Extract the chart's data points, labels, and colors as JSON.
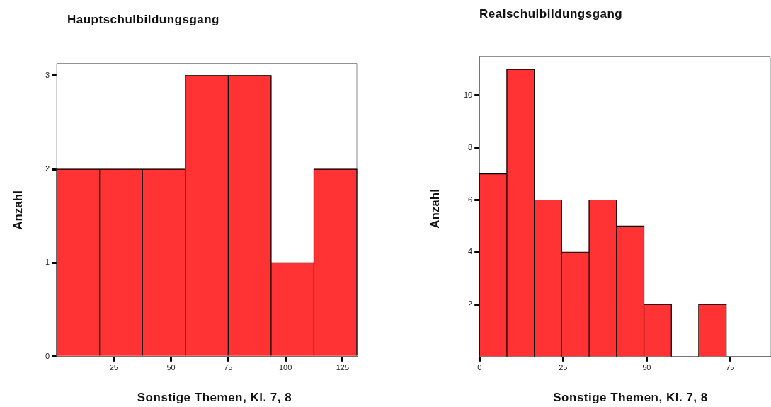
{
  "chart_data": [
    {
      "type": "histogram",
      "title": "Hauptschulbildungsgang",
      "xlabel": "Sonstige Themen, Kl. 7, 8",
      "ylabel": "Anzahl",
      "bins": [
        0,
        18.75,
        37.5,
        56.25,
        75,
        93.75,
        112.5,
        131.25
      ],
      "values": [
        2,
        2,
        2,
        3,
        3,
        1,
        2
      ],
      "color": "#ff3333",
      "xlim": [
        0,
        131.25
      ],
      "ylim": [
        0,
        3.13
      ],
      "xticks": [
        25,
        50,
        75,
        100,
        125
      ],
      "yticks": [
        0,
        1,
        2,
        3
      ],
      "grid": false,
      "legend": false
    },
    {
      "type": "histogram",
      "title": "Realschulbildungsgang",
      "xlabel": "Sonstige Themen, Kl. 7, 8",
      "ylabel": "Anzahl",
      "bins": [
        0,
        8.2,
        16.4,
        24.6,
        32.8,
        41,
        49.2,
        57.4,
        65.6,
        73.8
      ],
      "values": [
        7,
        11,
        6,
        4,
        6,
        5,
        2,
        0,
        2
      ],
      "color": "#ff3333",
      "xlim": [
        0,
        87
      ],
      "ylim": [
        0,
        11.5
      ],
      "xticks": [
        0,
        25,
        50,
        75
      ],
      "yticks": [
        2,
        4,
        6,
        8,
        10
      ],
      "grid": false,
      "legend": false
    }
  ]
}
